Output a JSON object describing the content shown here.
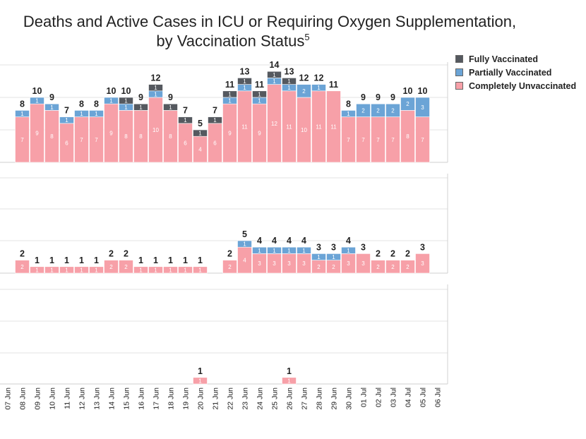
{
  "title": {
    "line1": "Deaths and Active Cases in ICU or Requiring Oxygen Supplementation,",
    "line2": "by Vaccination Status",
    "footnote": "5"
  },
  "colors": {
    "Fully Vaccinated": "#55595f",
    "Partially Vaccinated": "#6ba4d6",
    "Completely Unvaccinated": "#f7a0a8"
  },
  "chart_data": {
    "type": "bar",
    "stacked": true,
    "x": [
      "07 Jun",
      "08 Jun",
      "09 Jun",
      "10 Jun",
      "11 Jun",
      "12 Jun",
      "13 Jun",
      "14 Jun",
      "15 Jun",
      "16 Jun",
      "17 Jun",
      "18 Jun",
      "19 Jun",
      "20 Jun",
      "21 Jun",
      "22 Jun",
      "23 Jun",
      "24 Jun",
      "25 Jun",
      "26 Jun",
      "27 Jun",
      "28 Jun",
      "29 Jun",
      "30 Jun",
      "01 Jul",
      "02 Jul",
      "03 Jul",
      "04 Jul",
      "05 Jul",
      "06 Jul"
    ],
    "legend": [
      "Fully Vaccinated",
      "Partially Vaccinated",
      "Completely Unvaccinated"
    ],
    "legend_position": "top-right",
    "grid": true,
    "panels": [
      {
        "series": [
          {
            "name": "Completely Unvaccinated",
            "values": [
              null,
              7,
              9,
              8,
              6,
              7,
              7,
              9,
              8,
              8,
              10,
              8,
              6,
              4,
              6,
              9,
              11,
              9,
              12,
              11,
              10,
              11,
              11,
              7,
              7,
              7,
              7,
              8,
              7,
              null
            ]
          },
          {
            "name": "Partially Vaccinated",
            "values": [
              null,
              1,
              1,
              1,
              1,
              1,
              1,
              1,
              1,
              0,
              1,
              0,
              0,
              0,
              0,
              1,
              1,
              1,
              1,
              1,
              2,
              1,
              0,
              1,
              2,
              2,
              2,
              2,
              3,
              null
            ]
          },
          {
            "name": "Fully Vaccinated",
            "values": [
              null,
              0,
              0,
              0,
              0,
              0,
              0,
              0,
              1,
              1,
              1,
              1,
              1,
              1,
              1,
              1,
              1,
              1,
              1,
              1,
              0,
              0,
              0,
              0,
              0,
              0,
              0,
              0,
              0,
              null
            ]
          }
        ],
        "totals": [
          null,
          8,
          10,
          9,
          7,
          8,
          8,
          10,
          10,
          9,
          12,
          9,
          7,
          5,
          7,
          11,
          13,
          11,
          14,
          13,
          12,
          12,
          11,
          8,
          9,
          9,
          9,
          10,
          10,
          null
        ]
      },
      {
        "series": [
          {
            "name": "Completely Unvaccinated",
            "values": [
              null,
              2,
              1,
              1,
              1,
              1,
              1,
              2,
              2,
              1,
              1,
              1,
              1,
              1,
              null,
              2,
              4,
              3,
              3,
              3,
              3,
              2,
              2,
              3,
              3,
              2,
              2,
              2,
              3,
              null
            ]
          },
          {
            "name": "Partially Vaccinated",
            "values": [
              null,
              0,
              0,
              0,
              0,
              0,
              0,
              0,
              0,
              0,
              0,
              0,
              0,
              0,
              null,
              0,
              1,
              1,
              1,
              1,
              1,
              1,
              1,
              1,
              0,
              0,
              0,
              0,
              0,
              null
            ]
          },
          {
            "name": "Fully Vaccinated",
            "values": [
              null,
              0,
              0,
              0,
              0,
              0,
              0,
              0,
              0,
              0,
              0,
              0,
              0,
              0,
              null,
              0,
              0,
              0,
              0,
              0,
              0,
              0,
              0,
              0,
              0,
              0,
              0,
              0,
              0,
              null
            ]
          }
        ],
        "totals": [
          null,
          2,
          1,
          1,
          1,
          1,
          1,
          2,
          2,
          1,
          1,
          1,
          1,
          1,
          null,
          2,
          5,
          4,
          4,
          4,
          4,
          3,
          3,
          4,
          3,
          2,
          2,
          2,
          3,
          null
        ]
      },
      {
        "series": [
          {
            "name": "Completely Unvaccinated",
            "values": [
              null,
              null,
              null,
              null,
              null,
              null,
              null,
              null,
              null,
              null,
              null,
              null,
              null,
              1,
              null,
              null,
              null,
              null,
              null,
              1,
              null,
              null,
              null,
              null,
              null,
              null,
              null,
              null,
              null,
              null
            ]
          },
          {
            "name": "Partially Vaccinated",
            "values": [
              null,
              null,
              null,
              null,
              null,
              null,
              null,
              null,
              null,
              null,
              null,
              null,
              null,
              null,
              null,
              null,
              null,
              null,
              null,
              null,
              null,
              null,
              null,
              null,
              null,
              null,
              null,
              null,
              null,
              null
            ]
          },
          {
            "name": "Fully Vaccinated",
            "values": [
              null,
              null,
              null,
              null,
              null,
              null,
              null,
              null,
              null,
              null,
              null,
              null,
              null,
              null,
              null,
              null,
              null,
              null,
              null,
              null,
              null,
              null,
              null,
              null,
              null,
              null,
              null,
              null,
              null,
              null
            ]
          }
        ],
        "totals": [
          null,
          null,
          null,
          null,
          null,
          null,
          null,
          null,
          null,
          null,
          null,
          null,
          null,
          1,
          null,
          null,
          null,
          null,
          null,
          1,
          null,
          null,
          null,
          null,
          null,
          null,
          null,
          null,
          null,
          null
        ]
      }
    ]
  }
}
